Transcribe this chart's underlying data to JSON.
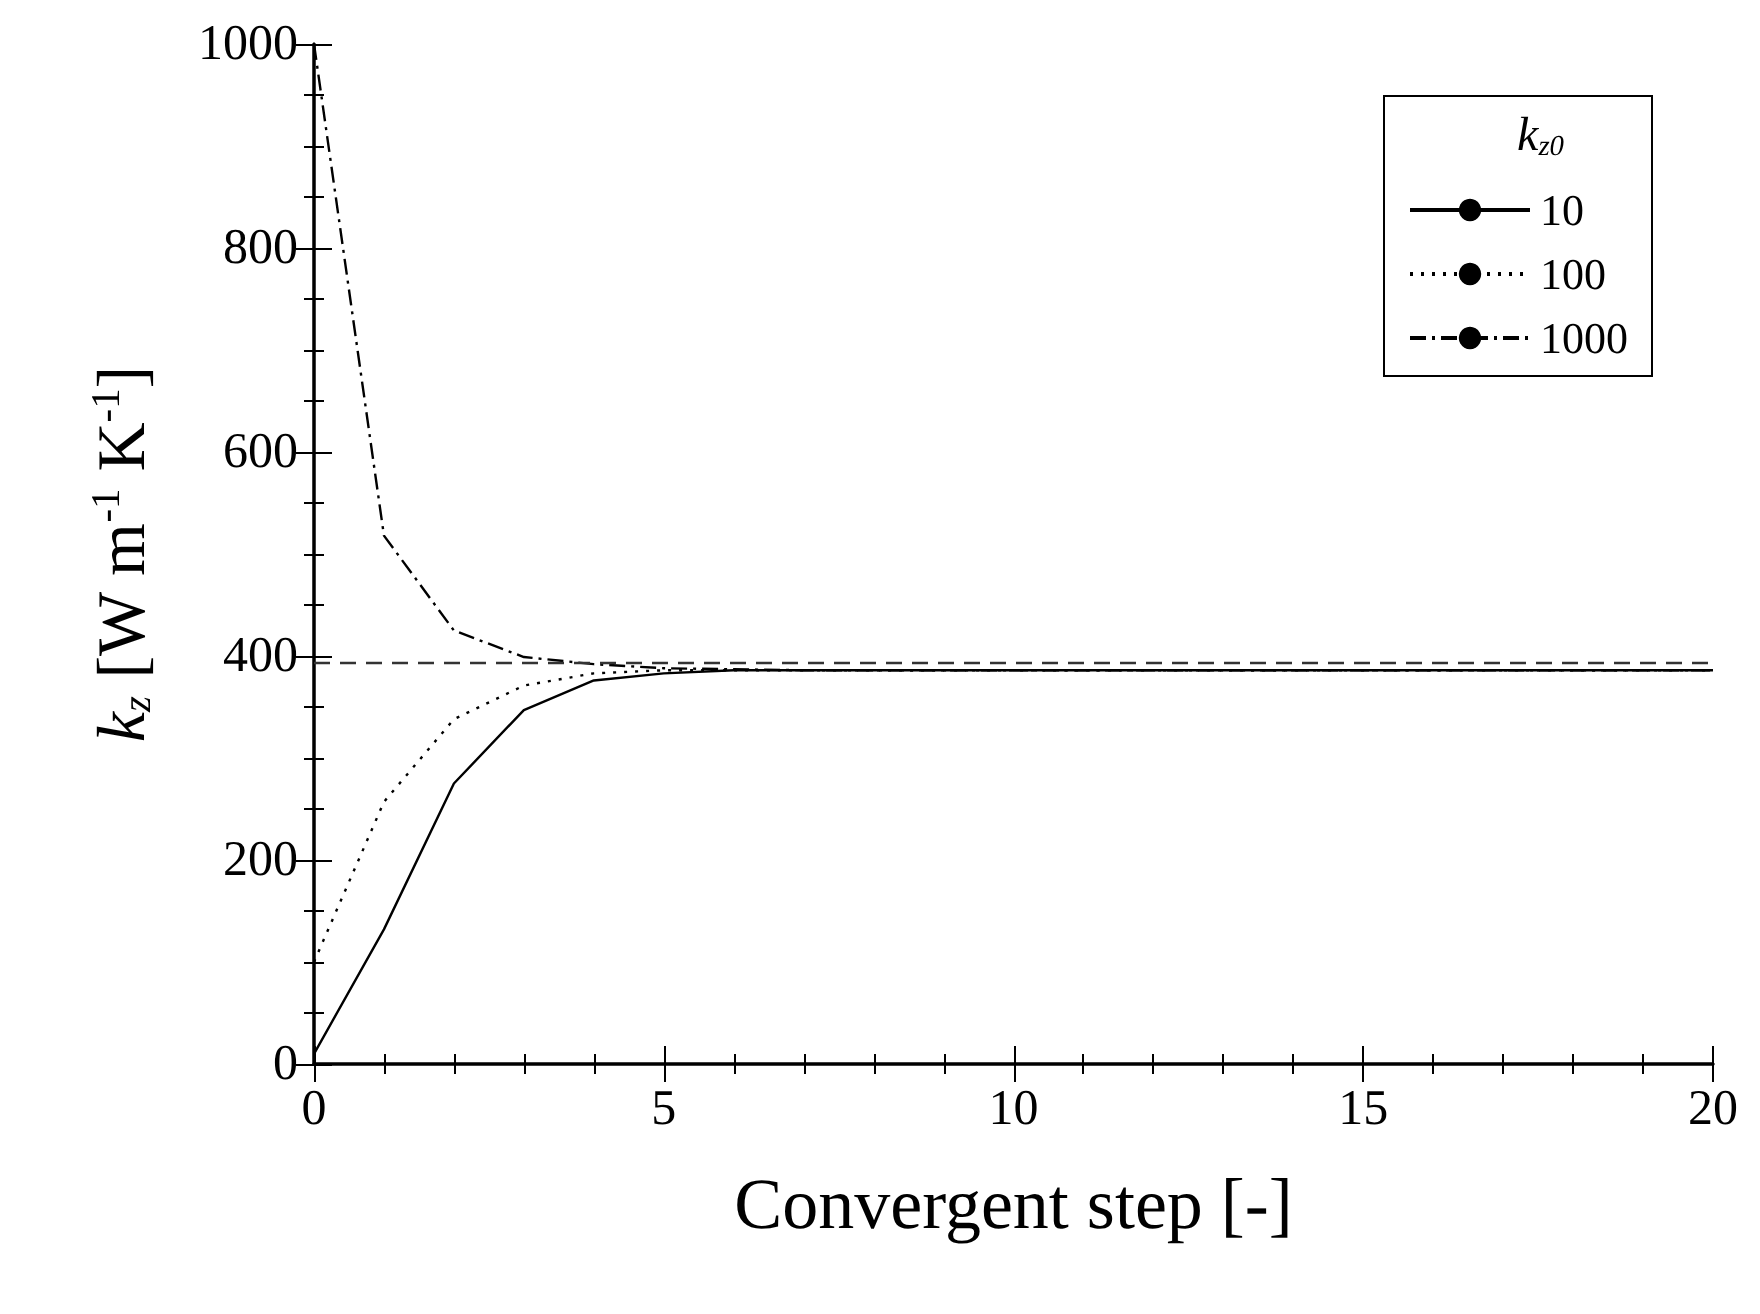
{
  "chart_data": {
    "type": "line",
    "xlabel": "Convergent step [-]",
    "ylabel": "k$_{z}$ [W m$^{-1}$ K$^{-1}$]",
    "legend_title": "k$_{z0}$",
    "legend": "top right",
    "grid": false,
    "marker": "none",
    "x": [
      0,
      1,
      2,
      3,
      4,
      5,
      6,
      7,
      8,
      9,
      10,
      11,
      12,
      13,
      14,
      15,
      16,
      17,
      18,
      19,
      20
    ],
    "xlim": [
      0,
      20
    ],
    "xticks": [
      0,
      5,
      10,
      15,
      20
    ],
    "ylim": [
      0,
      1000
    ],
    "yticks": [
      0,
      200,
      400,
      600,
      800,
      1000
    ],
    "series": [
      {
        "name": "10",
        "color": "#000000",
        "line_style": "solid",
        "values": [
          10,
          132,
          275,
          347,
          376,
          383,
          386,
          386,
          386,
          386,
          386,
          386,
          386,
          386,
          386,
          386,
          386,
          386,
          386,
          386,
          386
        ]
      },
      {
        "name": "100",
        "color": "#000000",
        "line_style": "dotted",
        "values": [
          100,
          257,
          338,
          371,
          383,
          386,
          386,
          386,
          386,
          386,
          386,
          386,
          386,
          386,
          386,
          386,
          386,
          386,
          386,
          386,
          386
        ]
      },
      {
        "name": "1000",
        "color": "#000000",
        "line_style": "dashdot",
        "values": [
          1000,
          518,
          425,
          399,
          392,
          388,
          387,
          386,
          386,
          386,
          386,
          386,
          386,
          386,
          386,
          386,
          386,
          386,
          386,
          386,
          386
        ]
      }
    ],
    "ref_lines": [
      {
        "axis": "y",
        "value": 393,
        "label": null,
        "color": "#333333",
        "line_style": "dashed"
      }
    ]
  }
}
